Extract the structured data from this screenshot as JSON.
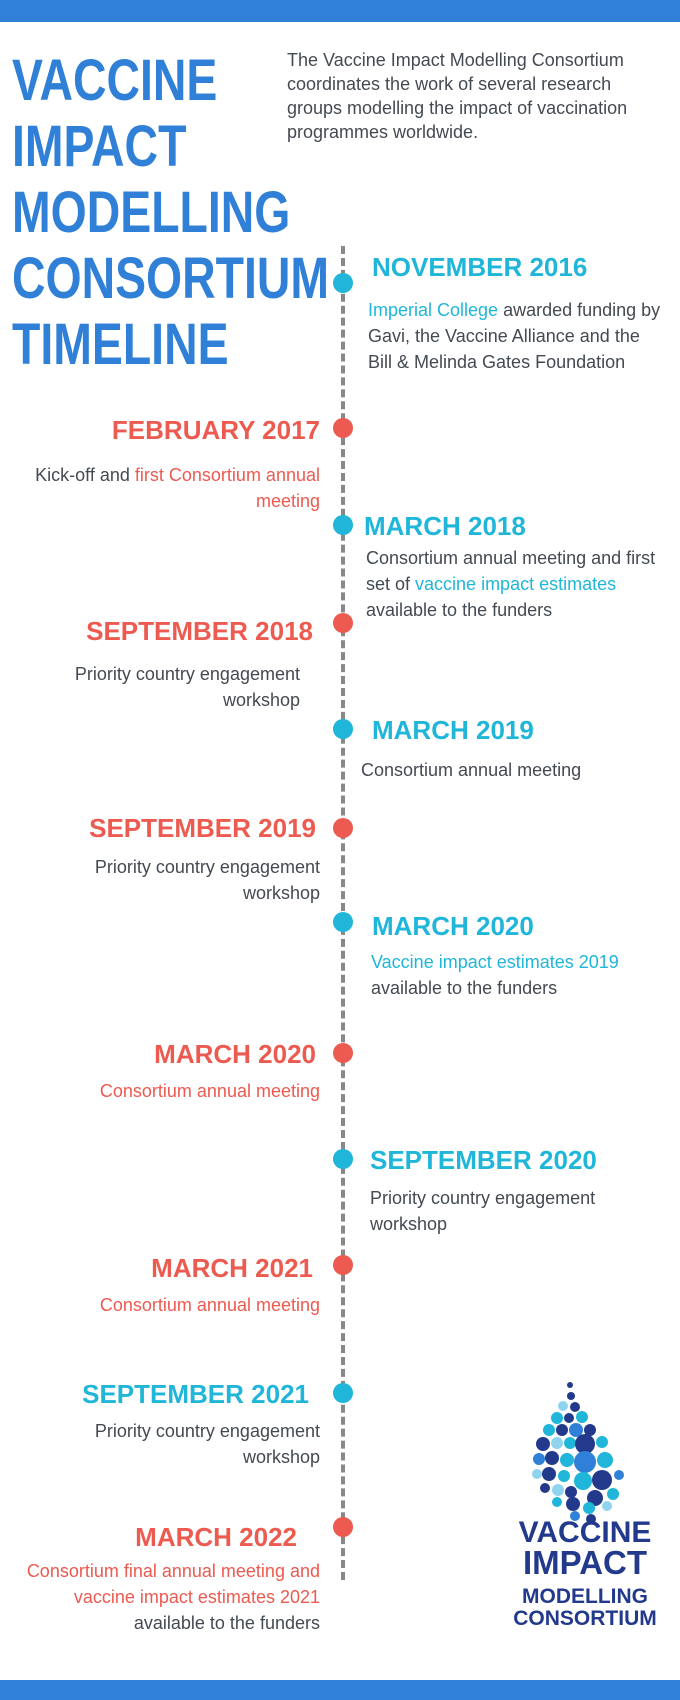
{
  "title": [
    "VACCINE",
    "IMPACT",
    "MODELLING",
    "CONSORTIUM",
    "TIMELINE"
  ],
  "intro": "The Vaccine Impact Modelling Consortium coordinates the work of several research groups modelling the impact of vaccination programmes worldwide.",
  "colors": {
    "blue": "#2f80d6",
    "teal": "#1fb6d9",
    "red": "#ec5a50",
    "navy": "#233a8c",
    "text": "#444a52"
  },
  "events": [
    {
      "date": "NOVEMBER 2016",
      "color": "teal",
      "side": "right",
      "desc": [
        {
          "t": "Imperial College",
          "hl": true
        },
        {
          "t": " awarded funding by Gavi, the Vaccine Alliance and the Bill & Melinda Gates Foundation"
        }
      ]
    },
    {
      "date": "FEBRUARY 2017",
      "color": "red",
      "side": "left",
      "desc": [
        {
          "t": "Kick-off and "
        },
        {
          "t": "first Consortium annual meeting",
          "hl": true
        }
      ]
    },
    {
      "date": "MARCH 2018",
      "color": "teal",
      "side": "right",
      "desc": [
        {
          "t": "Consortium annual meeting and first set of "
        },
        {
          "t": "vaccine impact estimates",
          "hl": true
        },
        {
          "t": " available to the funders"
        }
      ]
    },
    {
      "date": "SEPTEMBER 2018",
      "color": "red",
      "side": "left",
      "desc": [
        {
          "t": "Priority country engagement workshop"
        }
      ]
    },
    {
      "date": "MARCH 2019",
      "color": "teal",
      "side": "right",
      "desc": [
        {
          "t": "Consortium annual meeting"
        }
      ]
    },
    {
      "date": "SEPTEMBER 2019",
      "color": "red",
      "side": "left",
      "desc": [
        {
          "t": "Priority country engagement workshop"
        }
      ]
    },
    {
      "date": "MARCH 2020",
      "color": "teal",
      "side": "right",
      "desc": [
        {
          "t": "Vaccine impact estimates 2019",
          "hl": true
        },
        {
          "t": " available to the funders"
        }
      ]
    },
    {
      "date": "MARCH 2020",
      "color": "red",
      "side": "left",
      "desc": [
        {
          "t": "Consortium annual meeting",
          "hl": true
        }
      ]
    },
    {
      "date": "SEPTEMBER 2020",
      "color": "teal",
      "side": "right",
      "desc": [
        {
          "t": "Priority country engagement workshop"
        }
      ]
    },
    {
      "date": "MARCH 2021",
      "color": "red",
      "side": "left",
      "desc": [
        {
          "t": "Consortium annual meeting",
          "hl": true
        }
      ]
    },
    {
      "date": "SEPTEMBER 2021",
      "color": "teal",
      "side": "left",
      "desc": [
        {
          "t": "Priority country engagement workshop"
        }
      ]
    },
    {
      "date": "MARCH 2022",
      "color": "red",
      "side": "left",
      "desc": [
        {
          "t": "Consortium final annual meeting and vaccine impact estimates 2021",
          "hl": true
        },
        {
          "t": " available to the funders"
        }
      ]
    }
  ],
  "logo": {
    "icon": "droplet-bubbles-icon",
    "lines": [
      "VACCINE",
      "IMPACT",
      "MODELLING",
      "CONSORTIUM"
    ]
  }
}
